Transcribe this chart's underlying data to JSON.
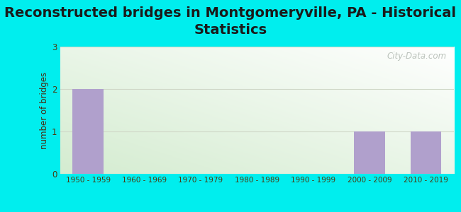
{
  "title": "Reconstructed bridges in Montgomeryville, PA - Historical\nStatistics",
  "ylabel": "number of bridges",
  "categories": [
    "1950 - 1959",
    "1960 - 1969",
    "1970 - 1979",
    "1980 - 1989",
    "1990 - 1999",
    "2000 - 2009",
    "2010 - 2019"
  ],
  "values": [
    2,
    0,
    0,
    0,
    0,
    1,
    1
  ],
  "bar_color": "#b0a0cc",
  "ylim": [
    0,
    3
  ],
  "yticks": [
    0,
    1,
    2,
    3
  ],
  "background_outer": "#00eeee",
  "background_plot_top_right": "#ffffff",
  "background_plot_bottom_left": "#d4ecd0",
  "title_fontsize": 14,
  "title_color": "#1a1a1a",
  "axis_label_color": "#4a2a10",
  "tick_label_color": "#4a3a10",
  "watermark": "City-Data.com",
  "watermark_color": "#b0b8b0",
  "grid_color": "#d0d8c8",
  "figwidth": 6.5,
  "figheight": 3.0,
  "dpi": 100
}
